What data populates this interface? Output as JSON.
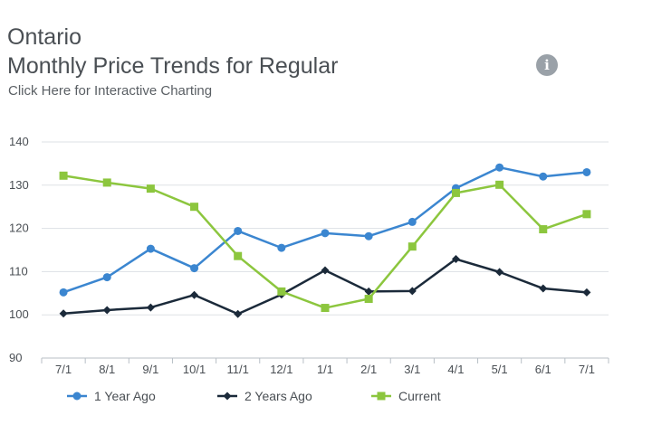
{
  "header": {
    "title": "Ontario",
    "subtitle": "Monthly Price Trends for Regular",
    "link": "Click Here for Interactive Charting",
    "info_icon": "info-icon"
  },
  "chart_data": {
    "type": "line",
    "categories": [
      "7/1",
      "8/1",
      "9/1",
      "10/1",
      "11/1",
      "12/1",
      "1/1",
      "2/1",
      "3/1",
      "4/1",
      "5/1",
      "6/1",
      "7/1"
    ],
    "ylim": [
      90,
      140
    ],
    "yticks": [
      90,
      100,
      110,
      120,
      130,
      140
    ],
    "grid": true,
    "legend_position": "bottom-left",
    "series": [
      {
        "name": "1 Year Ago",
        "color": "#3b86d0",
        "marker": "circle",
        "values": [
          105.2,
          108.7,
          115.3,
          110.8,
          119.4,
          115.5,
          118.9,
          118.2,
          121.5,
          129.3,
          134.1,
          132.0,
          133.0
        ]
      },
      {
        "name": "2 Years Ago",
        "color": "#1b2a3a",
        "marker": "diamond",
        "values": [
          100.3,
          101.1,
          101.7,
          104.6,
          100.2,
          104.7,
          110.3,
          105.4,
          105.5,
          112.9,
          109.9,
          106.1,
          105.2
        ]
      },
      {
        "name": "Current",
        "color": "#8cc63e",
        "marker": "square",
        "values": [
          132.2,
          130.6,
          129.2,
          125.0,
          113.6,
          105.4,
          101.6,
          103.7,
          115.8,
          128.2,
          130.1,
          119.8,
          123.3
        ]
      }
    ]
  }
}
